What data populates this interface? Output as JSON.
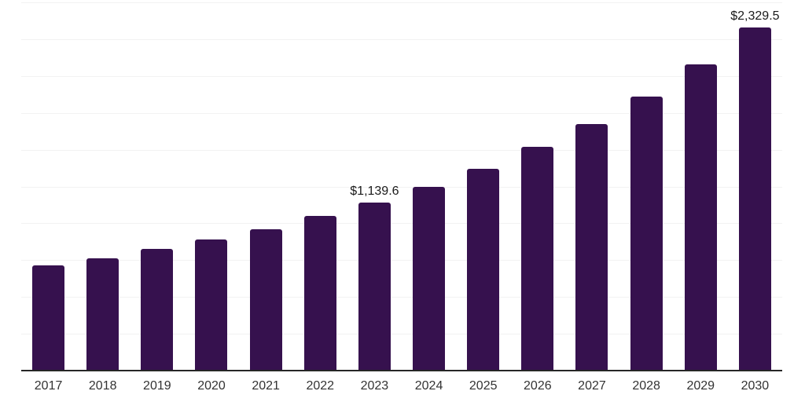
{
  "chart_data": {
    "type": "bar",
    "title": "",
    "xlabel": "",
    "ylabel": "",
    "categories": [
      "2017",
      "2018",
      "2019",
      "2020",
      "2021",
      "2022",
      "2023",
      "2024",
      "2025",
      "2026",
      "2027",
      "2028",
      "2029",
      "2030"
    ],
    "values": [
      712,
      760,
      825,
      888,
      962,
      1051,
      1139.6,
      1249,
      1371,
      1518,
      1672,
      1858,
      2077,
      2329.5
    ],
    "data_labels": {
      "2023": "$1,139.6",
      "2030": "$2,329.5"
    },
    "ylim": [
      0,
      2500
    ],
    "gridline_interval": 250,
    "gridline_count": 10,
    "grid": "on",
    "legend": "none",
    "colors": {
      "bar": "#36114e",
      "background": "#ffffff",
      "gridline": "#f2f2f2",
      "axis_line": "#262626",
      "value_label": "#1a1a1a",
      "tick_label": "#333333"
    }
  }
}
